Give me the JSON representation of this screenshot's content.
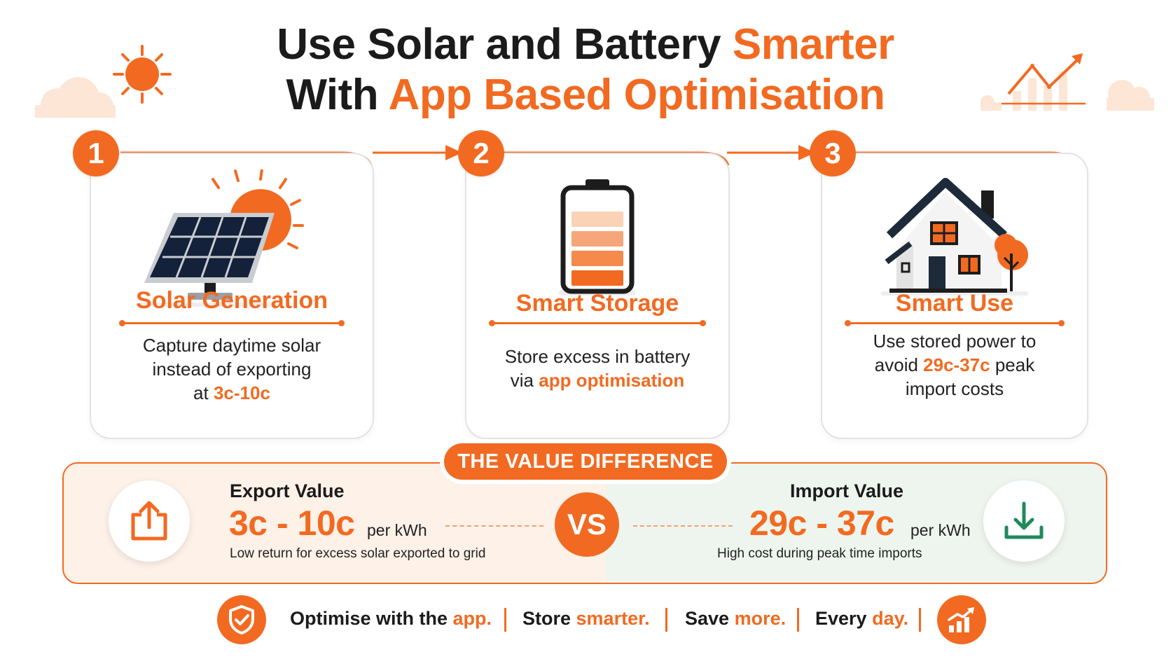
{
  "header": {
    "title_line1_black": "Use Solar and Battery ",
    "title_line1_orange": "Smarter",
    "title_line2_black": "With ",
    "title_line2_orange": "App Based Optimisation"
  },
  "steps": [
    {
      "number": "1",
      "title": "Solar Generation",
      "text_line1": "Capture daytime solar",
      "text_line2": "instead of exporting",
      "text_line3_prefix": "at ",
      "text_line3_highlight": "3c-10c",
      "icon": "solar-panel-icon"
    },
    {
      "number": "2",
      "title": "Smart Storage",
      "text_line1": "Store excess in battery",
      "text_line2_prefix": "via ",
      "text_line2_highlight": "app optimisation",
      "icon": "battery-icon"
    },
    {
      "number": "3",
      "title": "Smart Use",
      "text_line1": "Use stored power to",
      "text_line2_prefix": "avoid ",
      "text_line2_highlight": "29c-37c",
      "text_line2_suffix": " peak",
      "text_line3": "import costs",
      "icon": "house-icon"
    }
  ],
  "value_difference": {
    "label": "THE VALUE DIFFERENCE",
    "vs": "VS",
    "export": {
      "heading": "Export Value",
      "range": "3c - 10c",
      "unit": "per kWh",
      "note": "Low return for excess solar exported to grid",
      "icon": "upload-icon"
    },
    "import": {
      "heading": "Import Value",
      "range": "29c - 37c",
      "unit": "per kWh",
      "note": "High cost during peak time imports",
      "icon": "download-icon"
    }
  },
  "footer": {
    "items": [
      {
        "black": "Optimise with the ",
        "orange": "app."
      },
      {
        "black": "Store ",
        "orange": "smarter."
      },
      {
        "black": "Save ",
        "orange": "more."
      },
      {
        "black": "Every ",
        "orange": "day."
      }
    ],
    "left_icon": "shield-check-icon",
    "right_icon": "growth-chart-icon"
  },
  "colors": {
    "accent": "#f26a21",
    "accent_light": "#fbd2b6",
    "dark": "#1b1b1b",
    "import_green": "#1f8a5b",
    "panel_left_bg": "#fdf1e8",
    "panel_right_bg": "#eef5ef"
  }
}
